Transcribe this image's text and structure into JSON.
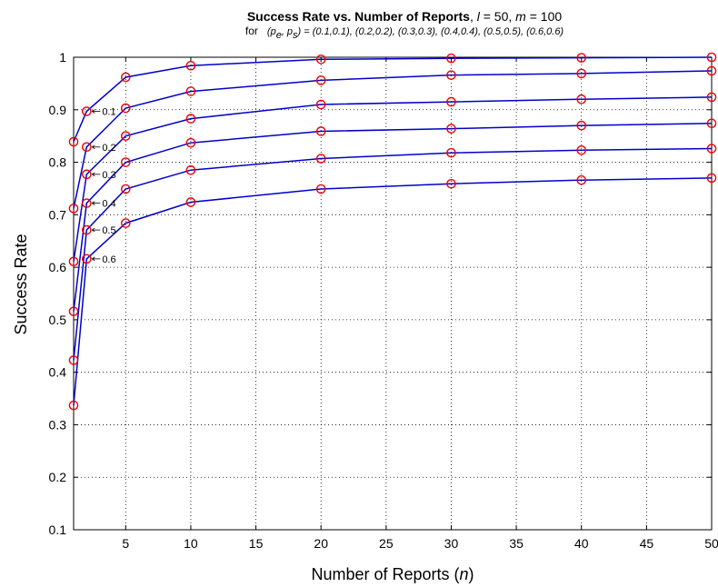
{
  "chart_data": {
    "type": "line",
    "title": {
      "bold_part": "Success Rate vs. Number of Reports",
      "sep": ", ",
      "l_var": "l",
      "l_val": " = 50, ",
      "m_var": "m",
      "m_val": " = 100"
    },
    "subtitle": {
      "prefix": "for",
      "params_pre": "(p",
      "sub_e": "e",
      "params_mid": ", p",
      "sub_s": "s",
      "params_post": ") = (0.1,0.1), (0.2,0.2), (0.3,0.3), (0.4,0.4), (0.5,0.5), (0.6,0.6)"
    },
    "xlabel": {
      "pre": "Number of Reports (",
      "var": "n",
      "post": ")"
    },
    "ylabel": "Success Rate",
    "xlim": [
      1,
      50
    ],
    "ylim": [
      0.1,
      1.0
    ],
    "xticks": [
      5,
      10,
      15,
      20,
      25,
      30,
      35,
      40,
      45,
      50
    ],
    "yticks": [
      0.1,
      0.2,
      0.3,
      0.4,
      0.5,
      0.6,
      0.7,
      0.8,
      0.9,
      1
    ],
    "grid": true,
    "line_color": "#0000cc",
    "marker_color": "#ee0000",
    "x": [
      1,
      2,
      5,
      10,
      20,
      30,
      40,
      50
    ],
    "series": [
      {
        "annotation": "0.1",
        "values": [
          0.839,
          0.897,
          0.962,
          0.984,
          0.996,
          0.998,
          0.999,
          1.0
        ]
      },
      {
        "annotation": "0.2",
        "values": [
          0.712,
          0.829,
          0.903,
          0.935,
          0.956,
          0.966,
          0.969,
          0.974
        ]
      },
      {
        "annotation": "0.3",
        "values": [
          0.611,
          0.777,
          0.85,
          0.883,
          0.91,
          0.915,
          0.92,
          0.924
        ]
      },
      {
        "annotation": "0.4",
        "values": [
          0.516,
          0.722,
          0.8,
          0.837,
          0.859,
          0.864,
          0.87,
          0.874
        ]
      },
      {
        "annotation": "0.5",
        "values": [
          0.423,
          0.671,
          0.749,
          0.785,
          0.807,
          0.818,
          0.823,
          0.826
        ]
      },
      {
        "annotation": "0.6",
        "values": [
          0.337,
          0.616,
          0.684,
          0.724,
          0.749,
          0.759,
          0.766,
          0.77
        ]
      }
    ]
  }
}
